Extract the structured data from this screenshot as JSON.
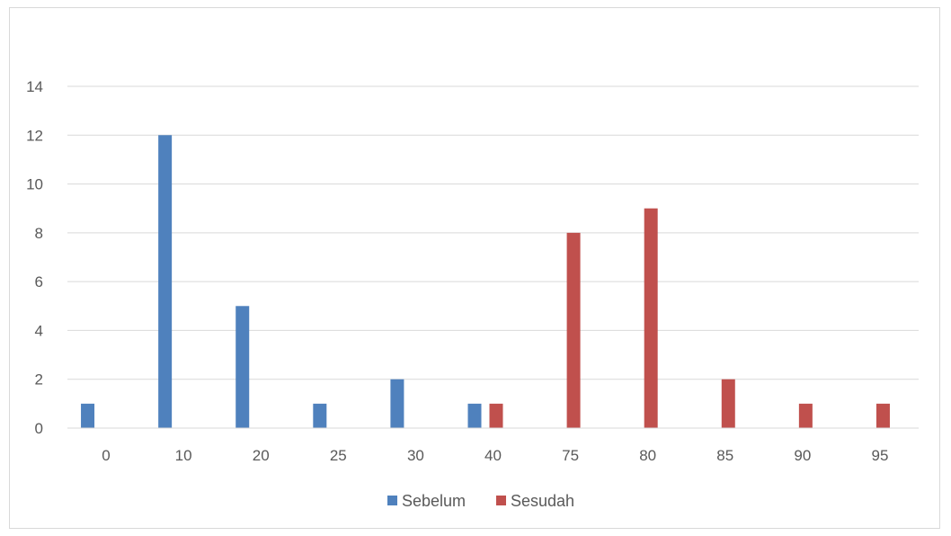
{
  "chart_data": {
    "type": "bar",
    "title": "",
    "xlabel": "",
    "ylabel": "",
    "categories": [
      "0",
      "10",
      "20",
      "25",
      "30",
      "40",
      "75",
      "80",
      "85",
      "90",
      "95"
    ],
    "series": [
      {
        "name": "Sebelum",
        "color": "#4f81bd",
        "values": [
          1,
          12,
          5,
          1,
          2,
          1,
          0,
          0,
          0,
          0,
          0
        ]
      },
      {
        "name": "Sesudah",
        "color": "#c0504d",
        "values": [
          0,
          0,
          0,
          0,
          0,
          1,
          8,
          9,
          2,
          1,
          1
        ]
      }
    ],
    "ylim": [
      0,
      14
    ],
    "yticks": [
      "0",
      "2",
      "4",
      "6",
      "8",
      "10",
      "12",
      "14"
    ],
    "grid": true,
    "legend_position": "bottom"
  }
}
